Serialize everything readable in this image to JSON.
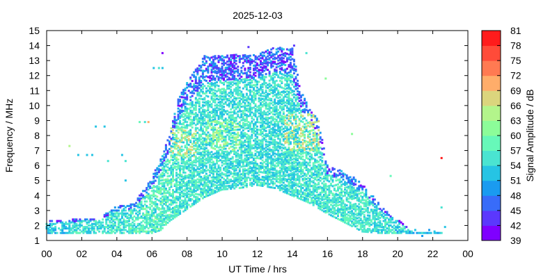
{
  "chart_data": {
    "type": "heatmap",
    "title": "2025-12-03",
    "xlabel": "UT Time / hrs",
    "ylabel": "Frequency / MHz",
    "xlim": [
      0,
      24
    ],
    "ylim": [
      1,
      15
    ],
    "x_ticks": [
      "00",
      "02",
      "04",
      "06",
      "08",
      "10",
      "12",
      "14",
      "16",
      "18",
      "20",
      "22",
      "00"
    ],
    "y_ticks": [
      "1",
      "2",
      "3",
      "4",
      "5",
      "6",
      "7",
      "8",
      "9",
      "10",
      "11",
      "12",
      "13",
      "14",
      "15"
    ],
    "colorbar": {
      "label": "Signal Amplitude / dB",
      "range": [
        39,
        81
      ],
      "ticks": [
        "39",
        "42",
        "45",
        "48",
        "51",
        "54",
        "57",
        "60",
        "63",
        "66",
        "69",
        "72",
        "75",
        "78",
        "81"
      ],
      "colors": [
        "#7f00ff",
        "#5b38fd",
        "#386cf9",
        "#1a9bf0",
        "#26c4e4",
        "#4ae4d1",
        "#67f8b9",
        "#8cfd99",
        "#b3f58b",
        "#dbd57d",
        "#ffad6a",
        "#ff7a52",
        "#ff4b39",
        "#ff1c1c"
      ]
    },
    "envelope_min_mhz": [
      [
        0.0,
        1.5
      ],
      [
        2.0,
        1.5
      ],
      [
        4.0,
        1.5
      ],
      [
        5.0,
        1.5
      ],
      [
        6.0,
        1.5
      ],
      [
        6.5,
        1.7
      ],
      [
        7.0,
        2.3
      ],
      [
        8.0,
        3.1
      ],
      [
        9.0,
        3.9
      ],
      [
        10.0,
        4.4
      ],
      [
        11.0,
        4.5
      ],
      [
        12.0,
        4.7
      ],
      [
        13.0,
        4.5
      ],
      [
        14.0,
        4.0
      ],
      [
        15.0,
        3.5
      ],
      [
        16.0,
        2.8
      ],
      [
        17.0,
        2.2
      ],
      [
        18.0,
        1.6
      ],
      [
        19.0,
        1.5
      ],
      [
        20.0,
        1.5
      ],
      [
        22.8,
        1.5
      ]
    ],
    "envelope_max_mhz": [
      [
        0.0,
        2.3
      ],
      [
        1.0,
        2.4
      ],
      [
        2.0,
        2.5
      ],
      [
        3.0,
        2.5
      ],
      [
        4.0,
        3.3
      ],
      [
        5.0,
        3.5
      ],
      [
        6.0,
        5.2
      ],
      [
        6.5,
        6.5
      ],
      [
        7.0,
        8.0
      ],
      [
        7.5,
        10.5
      ],
      [
        8.0,
        11.5
      ],
      [
        9.0,
        13.3
      ],
      [
        10.0,
        13.3
      ],
      [
        11.0,
        13.4
      ],
      [
        12.0,
        13.4
      ],
      [
        13.0,
        13.9
      ],
      [
        14.0,
        13.8
      ],
      [
        14.5,
        11.0
      ],
      [
        15.0,
        9.8
      ],
      [
        15.5,
        9.0
      ],
      [
        16.0,
        6.0
      ],
      [
        17.0,
        5.6
      ],
      [
        18.0,
        4.8
      ],
      [
        19.0,
        3.4
      ],
      [
        20.0,
        2.4
      ],
      [
        21.0,
        1.5
      ],
      [
        22.8,
        1.5
      ]
    ],
    "amplitude_db_by_hour": [
      [
        0,
        52
      ],
      [
        2,
        55
      ],
      [
        4,
        56
      ],
      [
        6,
        57
      ],
      [
        8,
        56
      ],
      [
        10,
        55
      ],
      [
        12,
        55
      ],
      [
        14,
        55
      ],
      [
        16,
        56
      ],
      [
        18,
        56
      ],
      [
        20,
        54
      ],
      [
        22,
        52
      ]
    ],
    "strong_regions": [
      {
        "x": [
          7.0,
          8.5
        ],
        "y": [
          6.5,
          8.5
        ],
        "db": 66
      },
      {
        "x": [
          13.5,
          15.6
        ],
        "y": [
          7.0,
          9.5
        ],
        "db": 66
      },
      {
        "x": [
          9.0,
          11.0
        ],
        "y": [
          7.0,
          9.0
        ],
        "db": 63
      }
    ],
    "isolated_points": [
      {
        "x": 1.3,
        "y": 7.3,
        "db": 65
      },
      {
        "x": 1.8,
        "y": 6.7,
        "db": 52
      },
      {
        "x": 2.3,
        "y": 6.7,
        "db": 53
      },
      {
        "x": 2.6,
        "y": 6.7,
        "db": 52
      },
      {
        "x": 2.8,
        "y": 8.6,
        "db": 53
      },
      {
        "x": 3.3,
        "y": 8.6,
        "db": 53
      },
      {
        "x": 3.5,
        "y": 6.3,
        "db": 55
      },
      {
        "x": 4.3,
        "y": 6.7,
        "db": 52
      },
      {
        "x": 4.5,
        "y": 6.3,
        "db": 55
      },
      {
        "x": 4.5,
        "y": 5.0,
        "db": 52
      },
      {
        "x": 5.3,
        "y": 8.9,
        "db": 57
      },
      {
        "x": 5.6,
        "y": 8.9,
        "db": 55
      },
      {
        "x": 5.8,
        "y": 8.9,
        "db": 70
      },
      {
        "x": 6.1,
        "y": 12.5,
        "db": 52
      },
      {
        "x": 6.4,
        "y": 12.5,
        "db": 54
      },
      {
        "x": 6.6,
        "y": 12.5,
        "db": 53
      },
      {
        "x": 6.6,
        "y": 13.5,
        "db": 40
      },
      {
        "x": 11.5,
        "y": 13.9,
        "db": 43
      },
      {
        "x": 14.1,
        "y": 14.0,
        "db": 43
      },
      {
        "x": 14.8,
        "y": 13.5,
        "db": 54
      },
      {
        "x": 15.9,
        "y": 11.8,
        "db": 62
      },
      {
        "x": 17.4,
        "y": 8.1,
        "db": 61
      },
      {
        "x": 19.6,
        "y": 5.3,
        "db": 57
      },
      {
        "x": 21.0,
        "y": 1.7,
        "db": 51
      },
      {
        "x": 21.4,
        "y": 1.3,
        "db": 50
      },
      {
        "x": 21.8,
        "y": 1.7,
        "db": 48
      },
      {
        "x": 22.1,
        "y": 1.6,
        "db": 52
      },
      {
        "x": 22.5,
        "y": 3.2,
        "db": 55
      },
      {
        "x": 22.5,
        "y": 6.5,
        "db": 81
      },
      {
        "x": 22.7,
        "y": 1.9,
        "db": 51
      }
    ],
    "grid": false,
    "legend": "colorbar-right"
  }
}
